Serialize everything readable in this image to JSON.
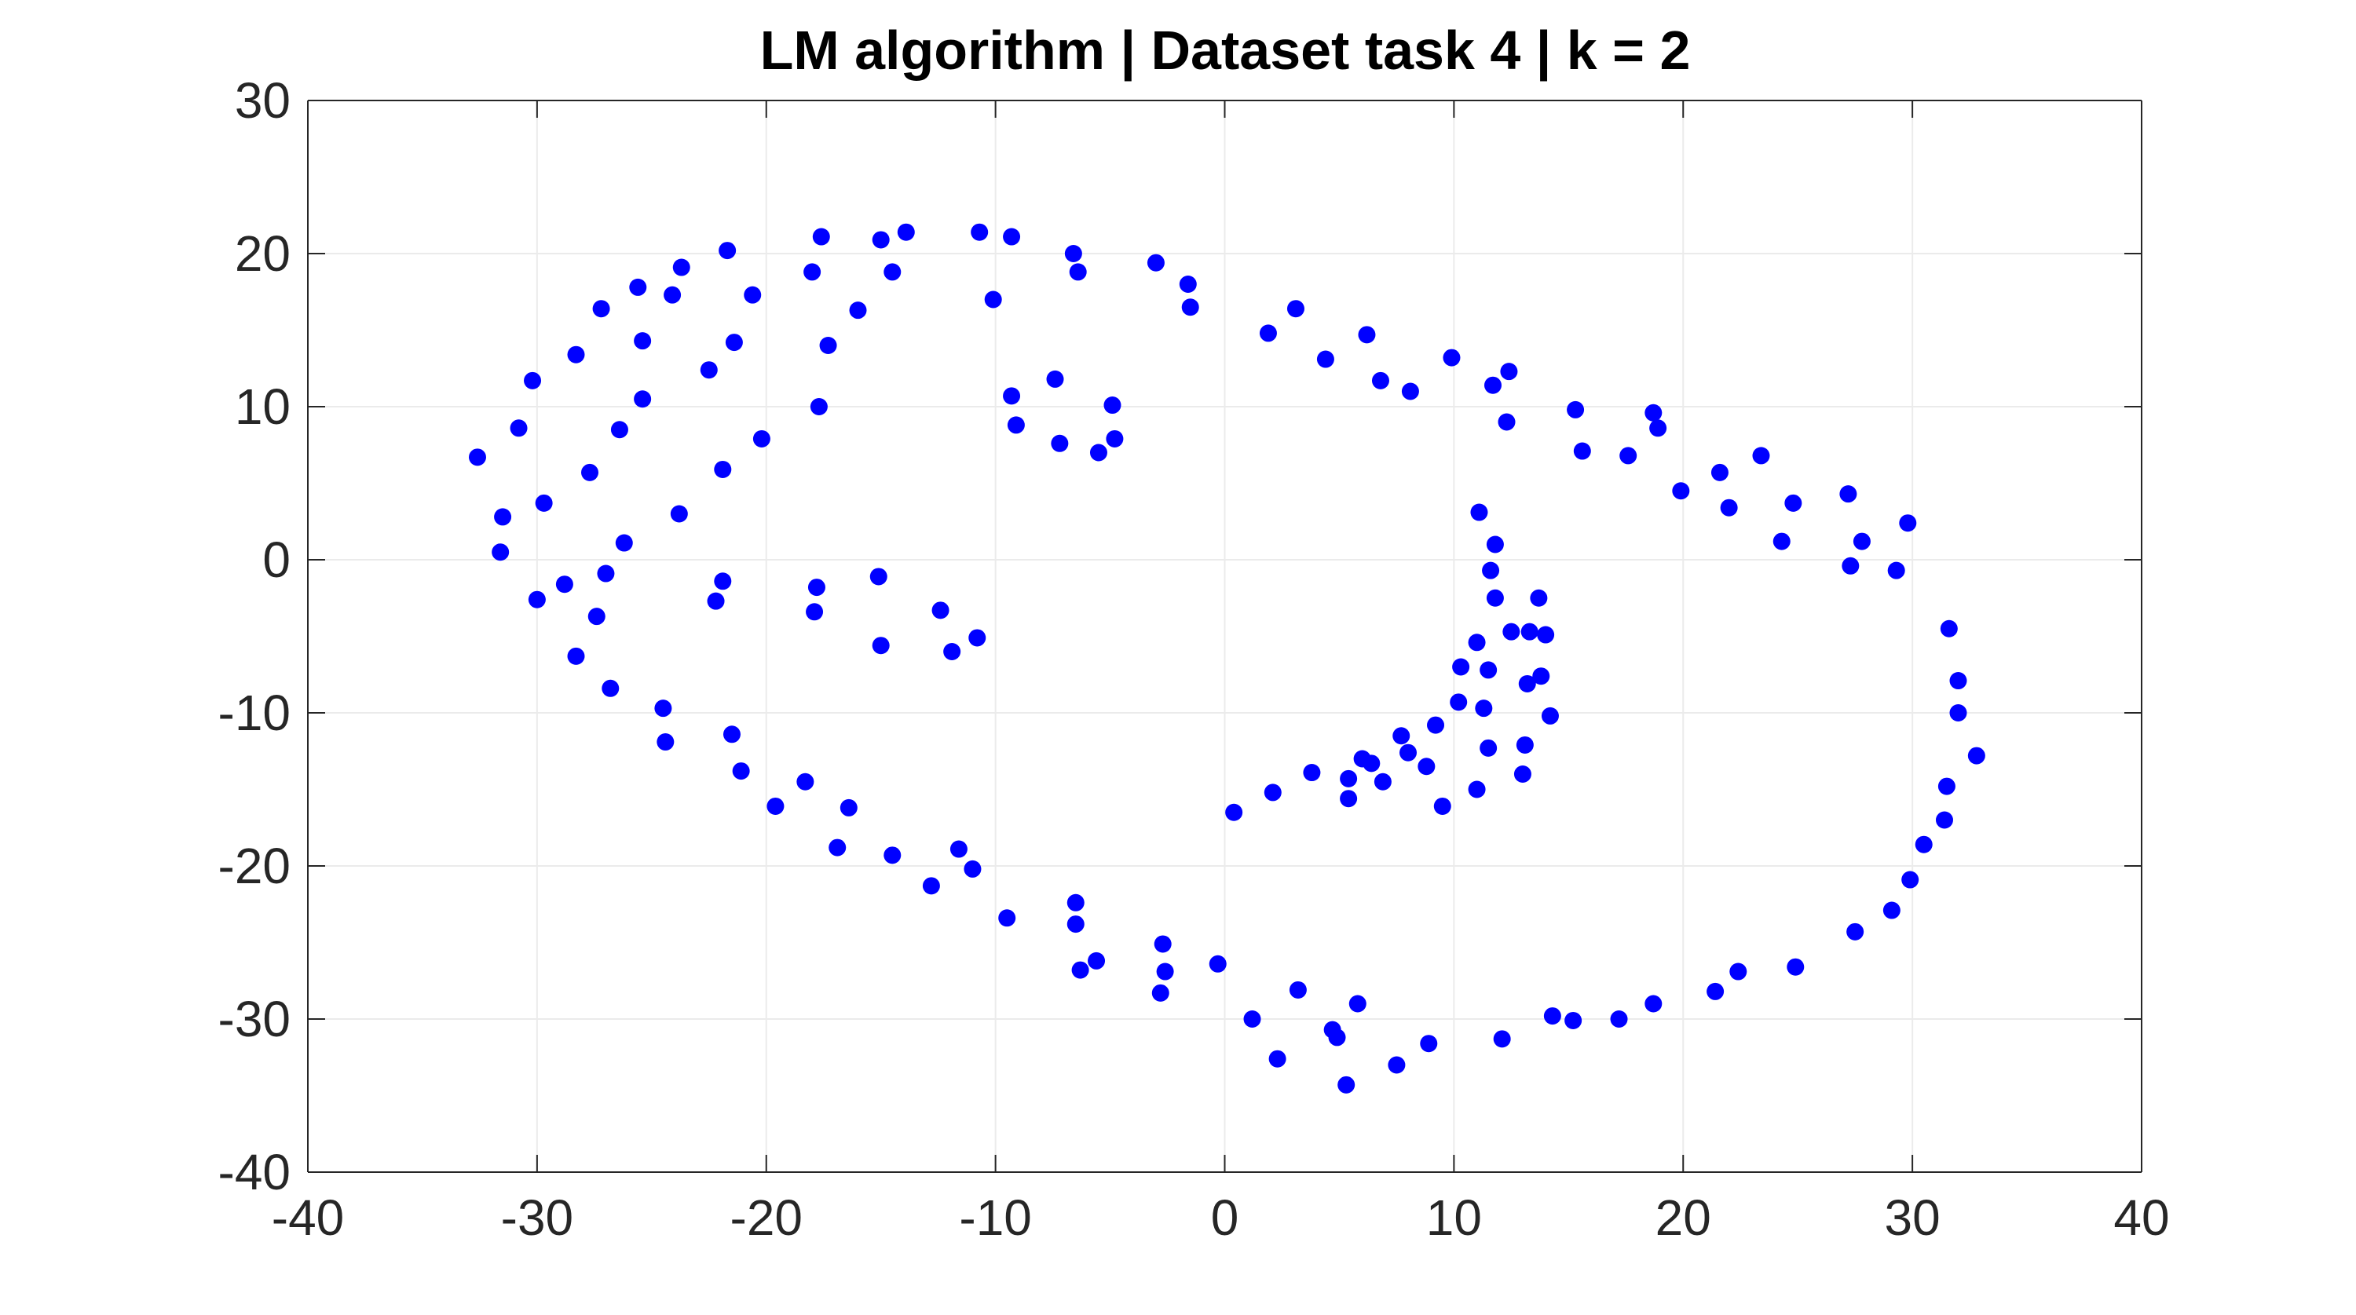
{
  "chart_data": {
    "type": "scatter",
    "title": "LM algorithm | Dataset task 4 | k = 2",
    "xlabel": "",
    "ylabel": "",
    "xlim": [
      -40,
      40
    ],
    "ylim": [
      -40,
      30
    ],
    "xticks": [
      -40,
      -30,
      -20,
      -10,
      0,
      10,
      20,
      30,
      40
    ],
    "yticks": [
      -40,
      -30,
      -20,
      -10,
      0,
      10,
      20,
      30
    ],
    "xtick_labels": [
      "-40",
      "-30",
      "-20",
      "-10",
      "0",
      "10",
      "20",
      "30",
      "40"
    ],
    "ytick_labels": [
      "-40",
      "-30",
      "-20",
      "-10",
      "0",
      "10",
      "20",
      "30"
    ],
    "grid": true,
    "marker_color": "#0000ff",
    "series": [
      {
        "x": [
          -32.6,
          -31.5,
          -31.6,
          -30.8,
          -30.0,
          -30.2,
          -29.7,
          -28.8,
          -28.3,
          -28.3,
          -27.7,
          -27.4,
          -27.2,
          -27.0,
          -26.8,
          -26.4,
          -26.2,
          -25.6,
          -25.4,
          -25.4,
          -24.5,
          -24.4,
          -24.1,
          -23.8,
          -23.7,
          -22.5,
          -22.2,
          -21.9,
          -21.9,
          -21.7,
          -21.5,
          -21.4,
          -21.1,
          -20.6,
          -20.2,
          -19.6,
          -18.3,
          -18.0,
          -17.9,
          -17.8,
          -17.7,
          -17.6,
          -17.3,
          -16.9,
          -16.4,
          -16.0,
          -15.1,
          -15.0,
          -15.0,
          -14.5,
          -14.5,
          -13.9,
          -12.8,
          -12.4,
          -11.9,
          -11.6,
          -11.0,
          -10.8,
          -10.7,
          -10.1,
          -9.5,
          -9.3,
          -9.3,
          -9.1,
          -7.4,
          -7.2,
          -6.6,
          -6.5,
          -6.5,
          -6.4,
          -6.3,
          -5.6,
          -5.5,
          -4.9,
          -4.8,
          -3.0,
          -2.8,
          -2.7,
          -2.6,
          -1.6,
          -1.5,
          -0.3,
          0.4,
          1.2,
          1.9,
          2.1,
          2.3,
          3.1,
          3.2,
          3.8,
          4.4,
          4.7,
          4.9,
          5.3,
          5.4,
          5.4,
          5.8,
          6.0,
          6.2,
          6.4,
          6.8,
          6.9,
          7.5,
          7.7,
          8.0,
          8.1,
          8.8,
          8.9,
          9.2,
          9.5,
          9.9,
          10.2,
          10.3,
          11.0,
          11.0,
          11.1,
          11.3,
          11.5,
          11.5,
          11.6,
          11.7,
          11.8,
          11.8,
          12.1,
          12.3,
          12.4,
          12.5,
          13.0,
          13.1,
          13.2,
          13.3,
          13.7,
          13.8,
          14.0,
          14.2,
          14.3,
          15.2,
          15.3,
          15.6,
          17.2,
          17.6,
          18.7,
          18.7,
          18.9,
          19.9,
          21.4,
          21.6,
          22.0,
          22.4,
          23.4,
          24.3,
          24.8,
          24.9,
          27.2,
          27.3,
          27.5,
          27.8,
          29.1,
          29.3,
          29.8,
          29.9,
          30.5,
          31.4,
          31.5,
          31.6,
          32.0,
          32.0,
          32.8
        ],
        "y": [
          6.7,
          2.8,
          0.5,
          8.6,
          -2.6,
          11.7,
          3.7,
          -1.6,
          -6.3,
          13.4,
          5.7,
          -3.7,
          16.4,
          -0.9,
          -8.4,
          8.5,
          1.1,
          17.8,
          10.5,
          14.3,
          -9.7,
          -11.9,
          17.3,
          3.0,
          19.1,
          12.4,
          -2.7,
          -1.4,
          5.9,
          20.2,
          -11.4,
          14.2,
          -13.8,
          17.3,
          7.9,
          -16.1,
          -14.5,
          18.8,
          -3.4,
          -1.8,
          10.0,
          21.1,
          14.0,
          -18.8,
          -16.2,
          16.3,
          -1.1,
          -5.6,
          20.9,
          18.8,
          -19.3,
          21.4,
          -21.3,
          -3.3,
          -6.0,
          -18.9,
          -20.2,
          -5.1,
          21.4,
          17.0,
          -23.4,
          10.7,
          21.1,
          8.8,
          11.8,
          7.6,
          20.0,
          -22.4,
          -23.8,
          18.8,
          -26.8,
          -26.2,
          7.0,
          10.1,
          7.9,
          19.4,
          -28.3,
          -25.1,
          -26.9,
          18.0,
          16.5,
          -26.4,
          -16.5,
          -30.0,
          14.8,
          -15.2,
          -32.6,
          16.4,
          -28.1,
          -13.9,
          13.1,
          -30.7,
          -31.2,
          -34.3,
          -14.3,
          -15.6,
          -29.0,
          -13.0,
          14.7,
          -13.3,
          11.7,
          -14.5,
          -33.0,
          -11.5,
          -12.6,
          11.0,
          -13.5,
          -31.6,
          -10.8,
          -16.1,
          13.2,
          -9.3,
          -7.0,
          -15.0,
          -5.4,
          3.1,
          -9.7,
          -7.2,
          -12.3,
          -0.7,
          11.4,
          1.0,
          -2.5,
          -31.3,
          9.0,
          12.3,
          -4.7,
          -14.0,
          -12.1,
          -8.1,
          -4.7,
          -2.5,
          -7.6,
          -4.9,
          -10.2,
          -29.8,
          -30.1,
          9.8,
          7.1,
          -30.0,
          6.8,
          9.6,
          -29.0,
          8.6,
          4.5,
          -28.2,
          5.7,
          3.4,
          -26.9,
          6.8,
          1.2,
          3.7,
          -26.6,
          4.3,
          -0.4,
          -24.3,
          1.2,
          -22.9,
          -0.7,
          2.4,
          -20.9,
          -18.6,
          -17.0,
          -14.8,
          -4.5,
          -7.9,
          -10.0,
          -12.8
        ]
      }
    ]
  }
}
